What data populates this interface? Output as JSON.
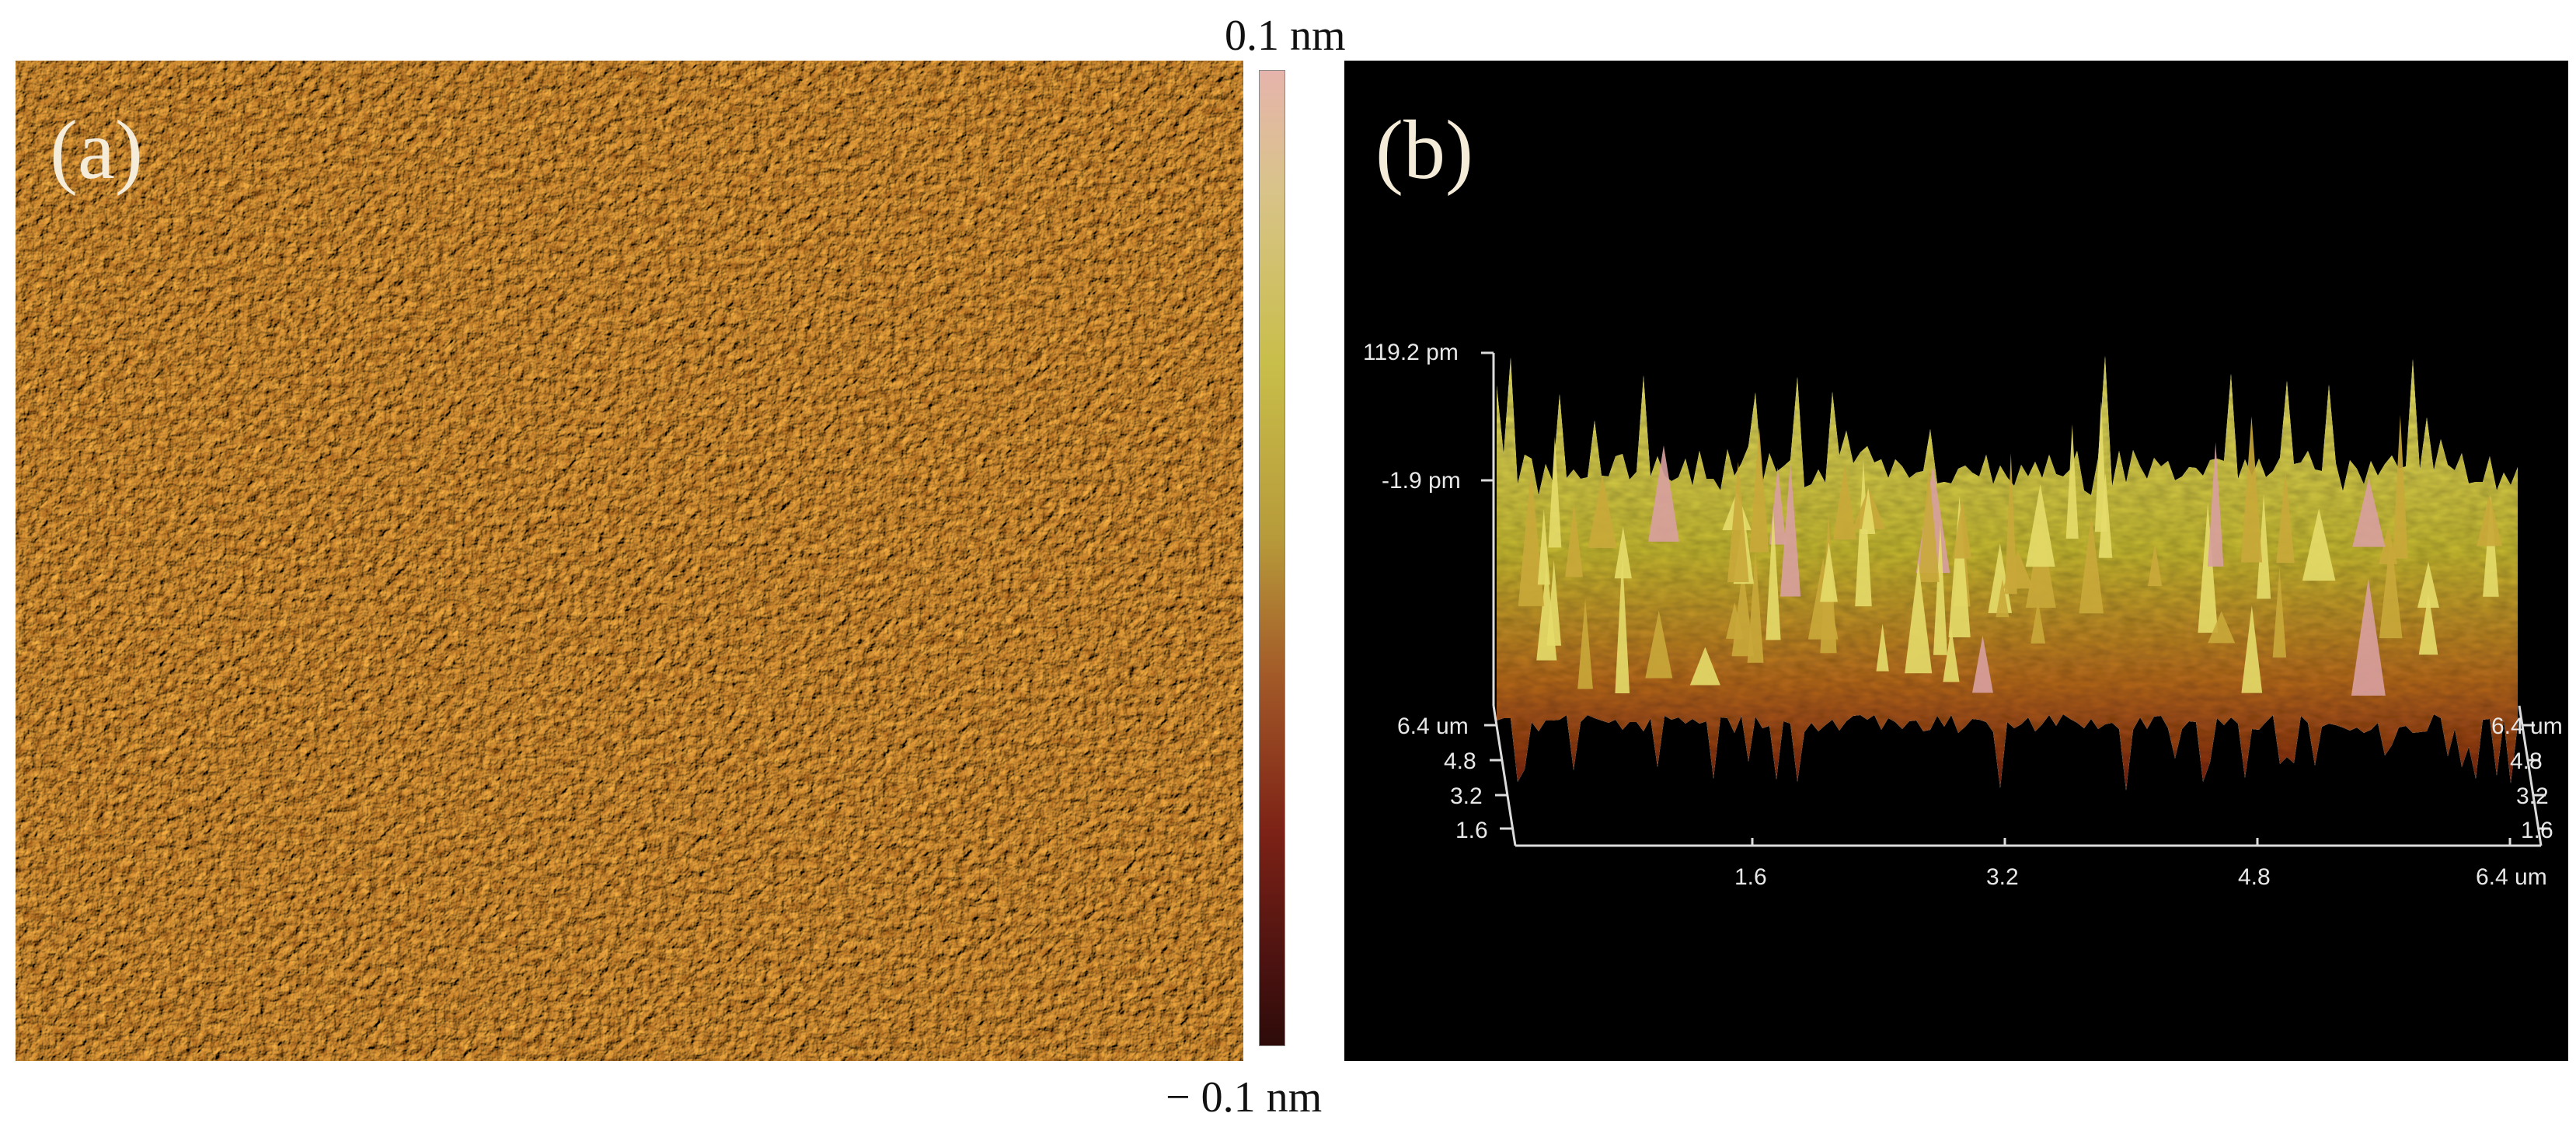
{
  "panel_a": {
    "label": "(a)",
    "colorbar": {
      "max_label": "0.1 nm",
      "min_label": "− 0.1 nm"
    },
    "colors": {
      "dark": "#8e2f14",
      "mid": "#b5762a",
      "light": "#c9b33c"
    }
  },
  "panel_b": {
    "label": "(b)",
    "z_labels": [
      "119.2 pm",
      "-1.9 pm"
    ],
    "y_labels_left": [
      "6.4 um",
      "4.8",
      "3.2",
      "1.6"
    ],
    "y_labels_right": [
      "6.4 um",
      "4.8",
      "3.2",
      "1.6"
    ],
    "x_labels": [
      "1.6",
      "3.2",
      "4.8",
      "6.4 um"
    ],
    "colors": {
      "background": "#000000",
      "surface_light": "#d9d25a",
      "surface_dark": "#b0351a",
      "peak": "#d8a0a0"
    }
  }
}
